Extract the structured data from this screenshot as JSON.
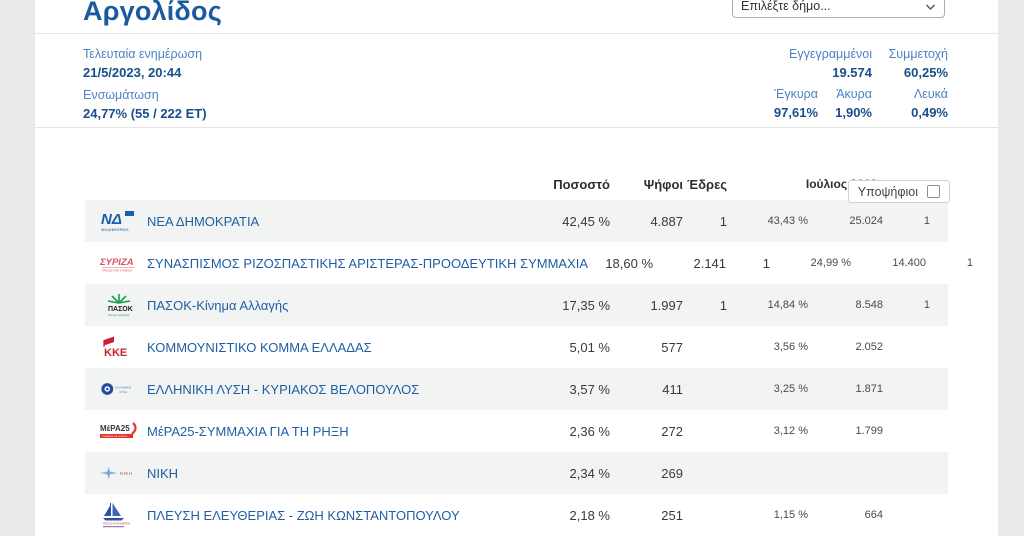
{
  "page": {
    "title": "Αργολίδος",
    "municipality_select_placeholder": "Επιλέξτε δήμο..."
  },
  "stats": {
    "last_update_label": "Τελευταία ενημέρωση",
    "last_update_value": "21/5/2023, 20:44",
    "incorporation_label": "Ενσωμάτωση",
    "incorporation_value": "24,77% (55 / 222 ΕΤ)",
    "registered_label": "Εγγεγραμμένοι",
    "registered_value": "19.574",
    "participation_label": "Συμμετοχή",
    "participation_value": "60,25%",
    "valid_label": "Έγκυρα",
    "valid_value": "97,61%",
    "invalid_label": "Άκυρα",
    "invalid_value": "1,90%",
    "blank_label": "Λευκά",
    "blank_value": "0,49%"
  },
  "results": {
    "candidates_toggle_label": "Υποψήφιοι",
    "headers": {
      "percentage": "Ποσοστό",
      "votes": "Ψήφοι",
      "seats": "Έδρες",
      "previous": "Ιούλιος 2019"
    },
    "rows": [
      {
        "party": "ΝΕΑ ΔΗΜΟΚΡΑΤΙΑ",
        "logo": "nd",
        "logo_color": "#1560a8",
        "percentage": "42,45 %",
        "votes": "4.887",
        "seats": "1",
        "prev_percentage": "43,43 %",
        "prev_votes": "25.024",
        "prev_seats": "1"
      },
      {
        "party": "ΣΥΝΑΣΠΙΣΜΟΣ ΡΙΖΟΣΠΑΣΤΙΚΗΣ ΑΡΙΣΤΕΡΑΣ-ΠΡΟΟΔΕΥΤΙΚΗ ΣΥΜΜΑΧΙΑ",
        "logo": "syriza",
        "logo_color": "#d6545e",
        "percentage": "18,60 %",
        "votes": "2.141",
        "seats": "1",
        "prev_percentage": "24,99 %",
        "prev_votes": "14.400",
        "prev_seats": "1"
      },
      {
        "party": "ΠΑΣΟΚ-Κίνημα Αλλαγής",
        "logo": "pasok",
        "logo_color": "#1b9d49",
        "percentage": "17,35 %",
        "votes": "1.997",
        "seats": "1",
        "prev_percentage": "14,84 %",
        "prev_votes": "8.548",
        "prev_seats": "1"
      },
      {
        "party": "ΚΟΜΜΟΥΝΙΣΤΙΚΟ ΚΟΜΜΑ ΕΛΛΑΔΑΣ",
        "logo": "kke",
        "logo_color": "#cf1f2e",
        "percentage": "5,01 %",
        "votes": "577",
        "seats": "",
        "prev_percentage": "3,56 %",
        "prev_votes": "2.052",
        "prev_seats": ""
      },
      {
        "party": "ΕΛΛΗΝΙΚΗ ΛΥΣΗ - ΚΥΡΙΑΚΟΣ ΒΕΛΟΠΟΥΛΟΣ",
        "logo": "ellysi",
        "logo_color": "#274b9b",
        "percentage": "3,57 %",
        "votes": "411",
        "seats": "",
        "prev_percentage": "3,25 %",
        "prev_votes": "1.871",
        "prev_seats": ""
      },
      {
        "party": "ΜέΡΑ25-ΣΥΜΜΑΧΙΑ ΓΙΑ ΤΗ ΡΗΞΗ",
        "logo": "mera25",
        "logo_color": "#e6332a",
        "percentage": "2,36 %",
        "votes": "272",
        "seats": "",
        "prev_percentage": "3,12 %",
        "prev_votes": "1.799",
        "prev_seats": ""
      },
      {
        "party": "ΝΙΚΗ",
        "logo": "niki",
        "logo_color": "#84b4dc",
        "percentage": "2,34 %",
        "votes": "269",
        "seats": "",
        "prev_percentage": "",
        "prev_votes": "",
        "prev_seats": ""
      },
      {
        "party": "ΠΛΕΥΣΗ ΕΛΕΥΘΕΡΙΑΣ - ΖΩΗ ΚΩΝΣΤΑΝΤΟΠΟΥΛΟΥ",
        "logo": "plefsi",
        "logo_color": "#2a52a0",
        "percentage": "2,18 %",
        "votes": "251",
        "seats": "",
        "prev_percentage": "1,15 %",
        "prev_votes": "664",
        "prev_seats": ""
      }
    ]
  }
}
